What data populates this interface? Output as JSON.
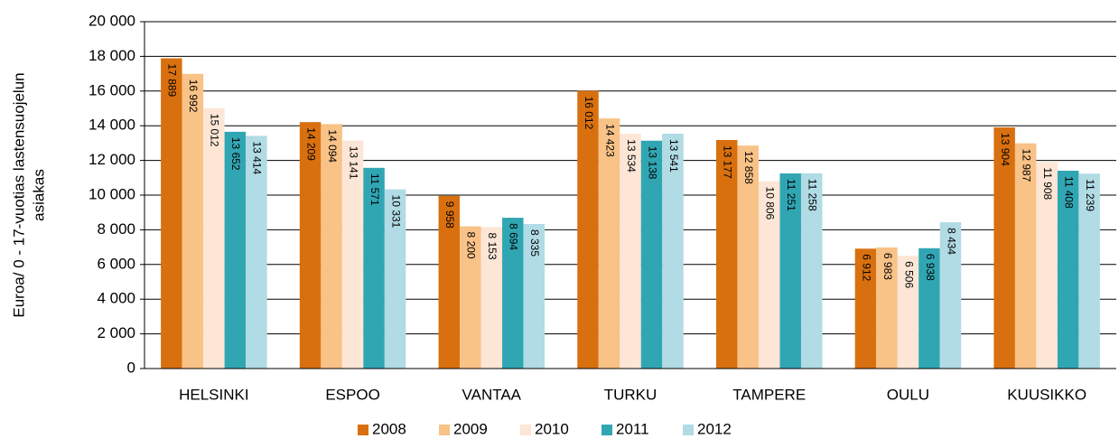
{
  "chart_data": {
    "type": "bar",
    "ylabel": [
      "Euroa/ 0 - 17-vuotias lastensuojelun",
      "asiakas"
    ],
    "categories": [
      "HELSINKI",
      "ESPOO",
      "VANTAA",
      "TURKU",
      "TAMPERE",
      "OULU",
      "KUUSIKKO"
    ],
    "series": [
      {
        "name": "2008",
        "color": "#d9700f",
        "values": [
          17889,
          14209,
          9958,
          16012,
          13177,
          6912,
          13904
        ],
        "value_labels": [
          "17 889",
          "14 209",
          "9 958",
          "16 012",
          "13 177",
          "6 912",
          "13 904"
        ]
      },
      {
        "name": "2009",
        "color": "#f9c287",
        "values": [
          16992,
          14094,
          8200,
          14423,
          12858,
          6983,
          12987
        ],
        "value_labels": [
          "16 992",
          "14 094",
          "8 200",
          "14 423",
          "12 858",
          "6 983",
          "12 987"
        ]
      },
      {
        "name": "2010",
        "color": "#fde6d6",
        "values": [
          15012,
          13141,
          8153,
          13534,
          10806,
          6506,
          11908
        ],
        "value_labels": [
          "15 012",
          "13 141",
          "8 153",
          "13 534",
          "10 806",
          "6 506",
          "11 908"
        ]
      },
      {
        "name": "2011",
        "color": "#31a6b3",
        "values": [
          13652,
          11571,
          8694,
          13138,
          11251,
          6938,
          11408
        ],
        "value_labels": [
          "13 652",
          "11 571",
          "8 694",
          "13 138",
          "11 251",
          "6 938",
          "11 408"
        ]
      },
      {
        "name": "2012",
        "color": "#b1dbe5",
        "values": [
          13414,
          10331,
          8335,
          13541,
          11258,
          8434,
          11239
        ],
        "value_labels": [
          "13 414",
          "10 331",
          "8 335",
          "13 541",
          "11 258",
          "8 434",
          "11 239"
        ]
      }
    ],
    "ylim": [
      0,
      20000
    ],
    "yticks": [
      0,
      {
        "value": 2000,
        "label": "2 000"
      },
      {
        "value": 4000,
        "label": "4 000"
      },
      {
        "value": 6000,
        "label": "6 000"
      },
      {
        "value": 8000,
        "label": "8 000"
      },
      {
        "value": 10000,
        "label": "10 000"
      },
      {
        "value": 12000,
        "label": "12 000"
      },
      {
        "value": 14000,
        "label": "14 000"
      },
      {
        "value": 16000,
        "label": "16 000"
      },
      {
        "value": 18000,
        "label": "18 000"
      },
      {
        "value": 20000,
        "label": "20 000"
      }
    ],
    "grid": true,
    "legend": "bottom"
  }
}
